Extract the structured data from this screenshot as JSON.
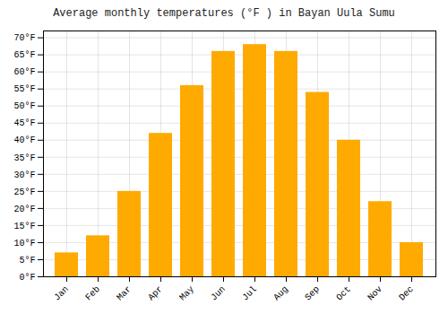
{
  "chart_data": {
    "type": "bar",
    "title": "Average monthly temperatures (°F ) in Bayan Uula Sumu",
    "categories": [
      "Jan",
      "Feb",
      "Mar",
      "Apr",
      "May",
      "Jun",
      "Jul",
      "Aug",
      "Sep",
      "Oct",
      "Nov",
      "Dec"
    ],
    "values": [
      7,
      12,
      25,
      42,
      56,
      66,
      68,
      66,
      54,
      40,
      22,
      10
    ],
    "color": "#FFAA00",
    "ylim": [
      0,
      72
    ],
    "yticks": [
      {
        "value": 0,
        "label": "0°F"
      },
      {
        "value": 5,
        "label": "5°F"
      },
      {
        "value": 10,
        "label": "10°F"
      },
      {
        "value": 15,
        "label": "15°F"
      },
      {
        "value": 20,
        "label": "20°F"
      },
      {
        "value": 25,
        "label": "25°F"
      },
      {
        "value": 30,
        "label": "30°F"
      },
      {
        "value": 35,
        "label": "35°F"
      },
      {
        "value": 40,
        "label": "40°F"
      },
      {
        "value": 45,
        "label": "45°F"
      },
      {
        "value": 50,
        "label": "50°F"
      },
      {
        "value": 55,
        "label": "55°F"
      },
      {
        "value": 60,
        "label": "60°F"
      },
      {
        "value": 65,
        "label": "65°F"
      },
      {
        "value": 70,
        "label": "70°F"
      }
    ],
    "grid": true
  }
}
